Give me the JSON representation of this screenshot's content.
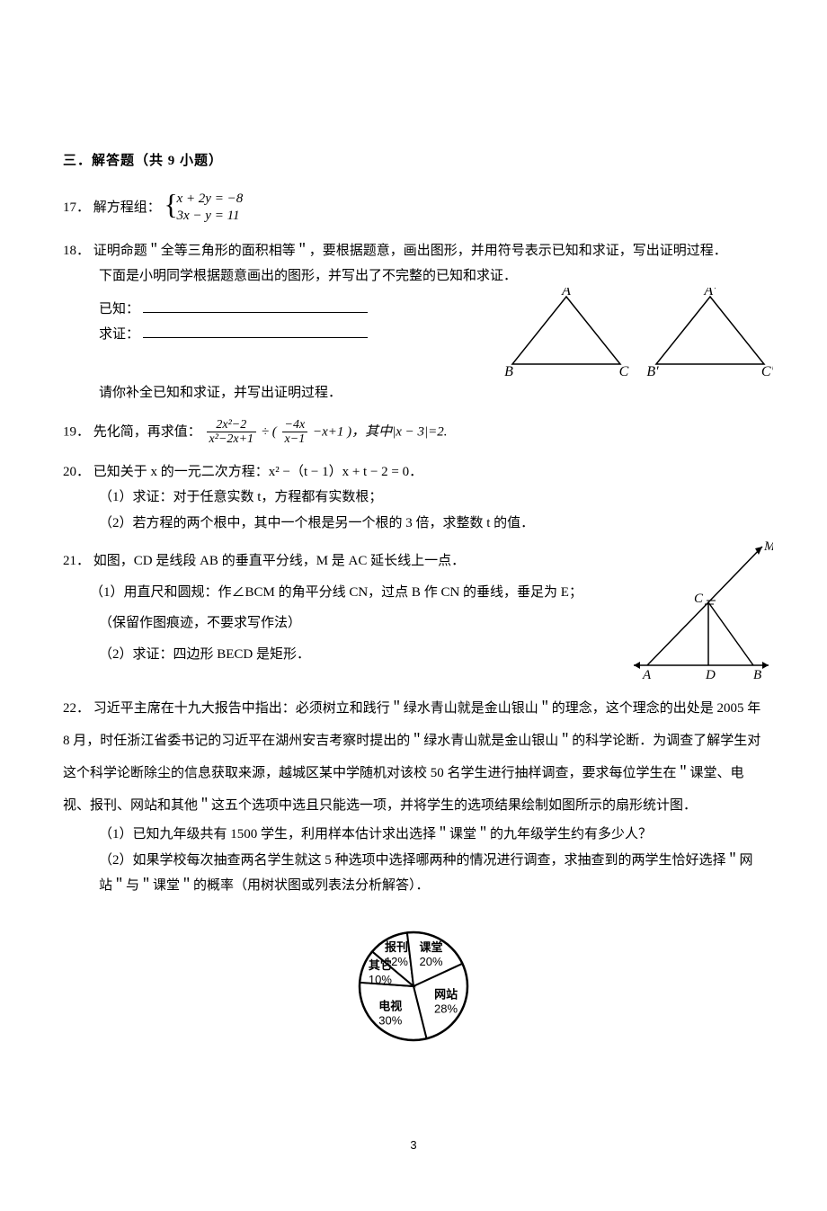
{
  "section": {
    "header": "三．解答题（共 9 小题）"
  },
  "q17": {
    "num": "17．",
    "label": "解方程组：",
    "eq1": "x + 2y = −8",
    "eq2": "3x − y = 11"
  },
  "q18": {
    "num": "18．",
    "line1": "证明命题＂全等三角形的面积相等＂，要根据题意，画出图形，并用符号表示已知和求证，写出证明过程．",
    "line2": "下面是小明同学根据题意画出的图形，并写出了不完整的已知和求证．",
    "known_label": "已知：",
    "prove_label": "求证：",
    "foot": "请你补全已知和求证，并写出证明过程．",
    "labels": {
      "A": "A",
      "B": "B",
      "C": "C",
      "Ap": "A′",
      "Bp": "B′",
      "Cp": "C′"
    }
  },
  "q19": {
    "num": "19．",
    "text_a": "先化简，再求值：",
    "frac1_num": "2x²−2",
    "frac1_den": "x²−2x+1",
    "div": " ÷ (",
    "frac2_num": "−4x",
    "frac2_den": "x−1",
    "text_b": " −x+1 )，其中|x − 3|=2."
  },
  "q20": {
    "num": "20．",
    "intro": "已知关于 x 的一元二次方程：x² −（t − 1）x + t − 2 = 0．",
    "p1": "（1）求证：对于任意实数 t，方程都有实数根；",
    "p2": "（2）若方程的两个根中，其中一个根是另一个根的 3 倍，求整数 t 的值．"
  },
  "q21": {
    "num": "21．",
    "intro": "如图，CD 是线段 AB 的垂直平分线，M 是 AC 延长线上一点．",
    "p1": "（1）用直尺和圆规：作∠BCM 的角平分线 CN，过点 B 作 CN 的垂线，垂足为 E；",
    "note": "（保留作图痕迹，不要求写作法）",
    "p2": "（2）求证：四边形 BECD 是矩形．",
    "labels": {
      "M": "M",
      "C": "C",
      "A": "A",
      "D": "D",
      "B": "B"
    }
  },
  "q22": {
    "num": "22．",
    "para": "习近平主席在十九大报告中指出：必须树立和践行＂绿水青山就是金山银山＂的理念，这个理念的出处是 2005 年 8 月，时任浙江省委书记的习近平在湖州安吉考察时提出的＂绿水青山就是金山银山＂的科学论断．为调查了解学生对这个科学论断除尘的信息获取来源，越城区某中学随机对该校 50 名学生进行抽样调查，要求每位学生在＂课堂、电视、报刊、网站和其他＂这五个选项中选且只能选一项，并将学生的选项结果绘制如图所示的扇形统计图．",
    "p1": "（1）已知九年级共有 1500 学生，利用样本估计求出选择＂课堂＂的九年级学生约有多少人？",
    "p2": "（2）如果学校每次抽查两名学生就这 5 种选项中选择哪两种的情况进行调查，求抽查到的两学生恰好选择＂网站＂与＂课堂＂的概率（用树状图或列表法分析解答）．",
    "pie": {
      "slices": [
        {
          "label": "报刊",
          "pct": "12%",
          "value": 12
        },
        {
          "label": "课堂",
          "pct": "20%",
          "value": 20
        },
        {
          "label": "网站",
          "pct": "28%",
          "value": 28
        },
        {
          "label": "电视",
          "pct": "30%",
          "value": 30
        },
        {
          "label": "其它",
          "pct": "10%",
          "value": 10
        }
      ],
      "stroke": "#000000",
      "fill": "#ffffff",
      "label_fontsize": 13
    }
  },
  "footer": {
    "page": "3"
  }
}
